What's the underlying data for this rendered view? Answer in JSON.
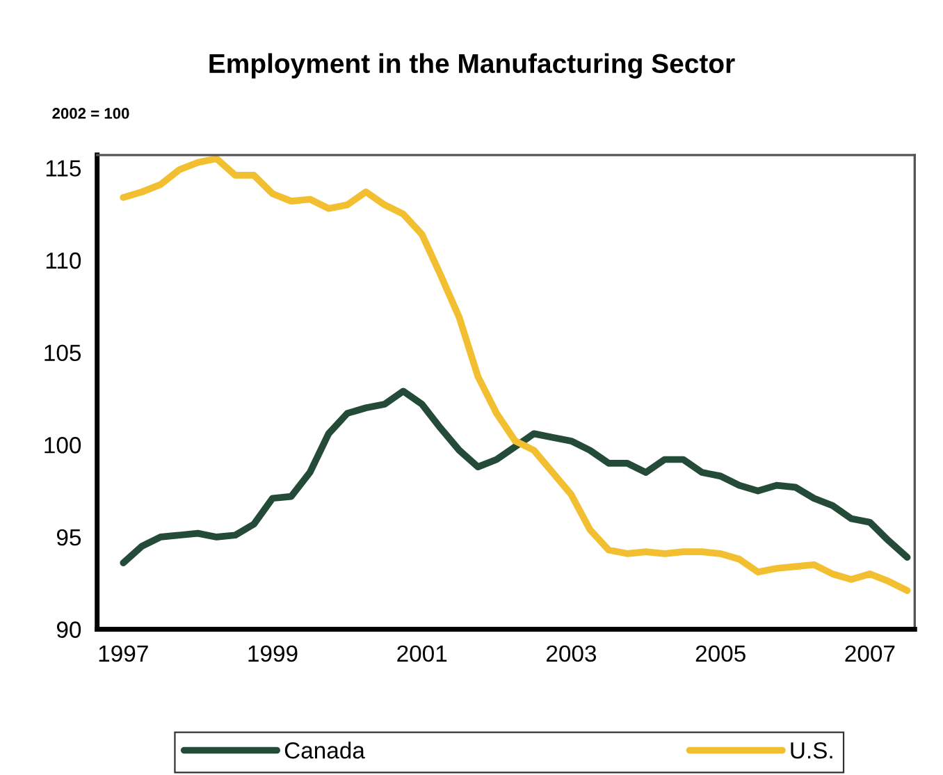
{
  "chart_data": {
    "type": "line",
    "title": "Employment in the Manufacturing Sector",
    "ylabel": "2002 = 100",
    "x": [
      1997,
      1997.25,
      1997.5,
      1997.75,
      1998,
      1998.25,
      1998.5,
      1998.75,
      1999,
      1999.25,
      1999.5,
      1999.75,
      2000,
      2000.25,
      2000.5,
      2000.75,
      2001,
      2001.25,
      2001.5,
      2001.75,
      2002,
      2002.25,
      2002.5,
      2002.75,
      2003,
      2003.25,
      2003.5,
      2003.75,
      2004,
      2004.25,
      2004.5,
      2004.75,
      2005,
      2005.25,
      2005.5,
      2005.75,
      2006,
      2006.25,
      2006.5,
      2006.75,
      2007,
      2007.25,
      2007.5
    ],
    "series": [
      {
        "name": "Canada",
        "color": "#244a38",
        "values": [
          93.6,
          94.5,
          95.0,
          95.1,
          95.2,
          95.0,
          95.1,
          95.7,
          97.1,
          97.2,
          98.5,
          100.6,
          101.7,
          102.0,
          102.2,
          102.9,
          102.2,
          100.9,
          99.7,
          98.8,
          99.2,
          99.9,
          100.6,
          100.4,
          100.2,
          99.7,
          99.0,
          99.0,
          98.5,
          99.2,
          99.2,
          98.5,
          98.3,
          97.8,
          97.5,
          97.8,
          97.7,
          97.1,
          96.7,
          96.0,
          95.8,
          94.8,
          93.9
        ]
      },
      {
        "name": "U.S.",
        "color": "#f2bf30",
        "values": [
          113.4,
          113.7,
          114.1,
          114.9,
          115.3,
          115.5,
          114.6,
          114.6,
          113.6,
          113.2,
          113.3,
          112.8,
          113.0,
          113.7,
          113.0,
          112.5,
          111.4,
          109.2,
          106.9,
          103.7,
          101.7,
          100.2,
          99.7,
          98.5,
          97.3,
          95.4,
          94.3,
          94.1,
          94.2,
          94.1,
          94.2,
          94.2,
          94.1,
          93.8,
          93.1,
          93.3,
          93.4,
          93.5,
          93.0,
          92.7,
          93.0,
          92.6,
          92.1
        ]
      }
    ],
    "xlim": [
      1996.65,
      2007.6
    ],
    "xticks": [
      1997,
      1999,
      2001,
      2003,
      2005,
      2007
    ],
    "ylim": [
      90,
      115.7
    ],
    "yticks": [
      90,
      95,
      100,
      105,
      110,
      115
    ],
    "grid": false,
    "legend": "bottom",
    "marker": "none",
    "line_style": "solid"
  }
}
